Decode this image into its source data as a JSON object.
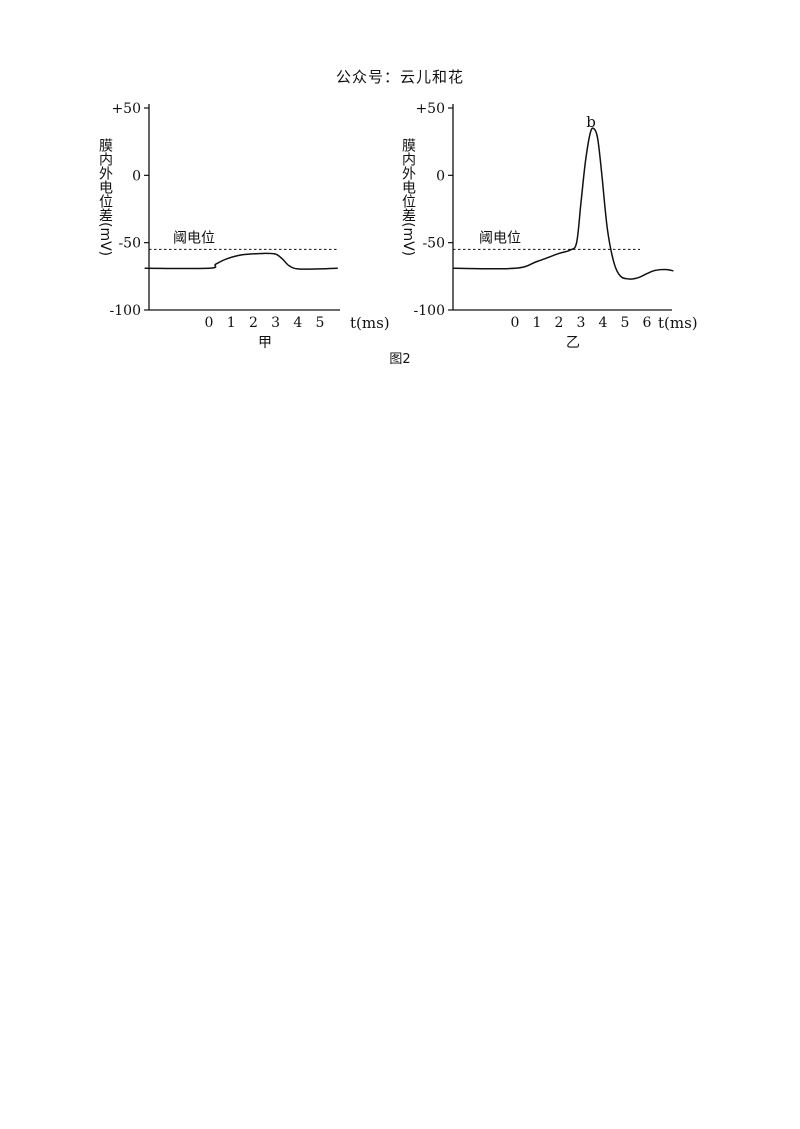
{
  "header": {
    "text": "公众号：云儿和花"
  },
  "figure_label": "图2",
  "chart_data": [
    {
      "type": "line",
      "panel_label": "甲",
      "ylabel": "膜内外电位差(mV)",
      "xlabel": "t(ms)",
      "yticks": [
        "+50",
        "0",
        "-50",
        "-100"
      ],
      "ytick_values": [
        50,
        0,
        -50,
        -100
      ],
      "xticks": [
        "0",
        "1",
        "2",
        "3",
        "4",
        "5"
      ],
      "xtick_values": [
        0,
        1,
        2,
        3,
        4,
        5
      ],
      "ylim": [
        -100,
        50
      ],
      "threshold": {
        "label": "阈电位",
        "value": -55
      },
      "series": [
        {
          "x": [
            -2.9,
            0,
            0.3,
            0.8,
            1.5,
            2.5,
            3.0,
            3.3,
            3.6,
            4.0,
            5.0,
            5.8
          ],
          "y": [
            -69,
            -69,
            -66,
            -62,
            -59,
            -58,
            -58.5,
            -62,
            -67,
            -69.5,
            -69.5,
            -69
          ]
        }
      ]
    },
    {
      "type": "line",
      "panel_label": "乙",
      "ylabel": "膜内外电位差(mV)",
      "xlabel": "t(ms)",
      "yticks": [
        "+50",
        "0",
        "-50",
        "-100"
      ],
      "ytick_values": [
        50,
        0,
        -50,
        -100
      ],
      "xticks": [
        "0",
        "1",
        "2",
        "3",
        "4",
        "5",
        "6"
      ],
      "xtick_values": [
        0,
        1,
        2,
        3,
        4,
        5,
        6
      ],
      "ylim": [
        -100,
        50
      ],
      "threshold": {
        "label": "阈电位",
        "value": -55
      },
      "annotation": {
        "text": "b",
        "x": 3.55,
        "y": 36
      },
      "series": [
        {
          "x": [
            -2.8,
            0,
            1,
            2,
            2.5,
            2.8,
            3.0,
            3.2,
            3.4,
            3.55,
            3.75,
            3.95,
            4.2,
            4.5,
            4.8,
            5.2,
            5.6,
            6.0,
            6.4,
            6.9,
            7.2
          ],
          "y": [
            -69,
            -69,
            -64,
            -58,
            -55.5,
            -50,
            -20,
            10,
            30,
            35,
            28,
            0,
            -40,
            -65,
            -75,
            -77,
            -76,
            -73,
            -70.5,
            -70,
            -71
          ]
        }
      ]
    }
  ]
}
